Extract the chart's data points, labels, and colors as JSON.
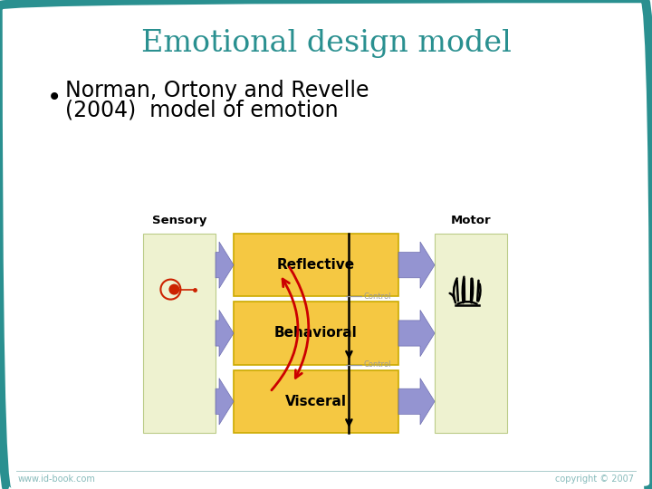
{
  "title": "Emotional design model",
  "title_color": "#2a9090",
  "bullet_line1": "Norman, Ortony and Revelle",
  "bullet_line2": "(2004)  model of emotion",
  "background_color": "#ffffff",
  "border_color": "#2a9090",
  "border_width": 8,
  "footer_left": "www.id-book.com",
  "footer_right": "copyright © 2007",
  "footer_color": "#88bbbb",
  "sensory_label": "Sensory",
  "motor_label": "Motor",
  "box_labels": [
    "Reflective",
    "Behavioral",
    "Visceral"
  ],
  "box_color": "#f5c842",
  "box_border": "#ccaa00",
  "panel_color": "#eef2d0",
  "panel_border": "#bbcc88",
  "arrow_purple": "#8888cc",
  "arrow_red": "#cc0000",
  "control_text": "Control",
  "control_color": "#999999"
}
